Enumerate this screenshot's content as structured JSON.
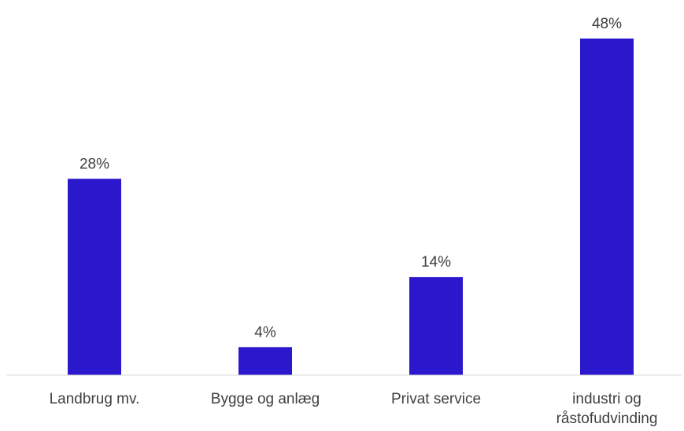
{
  "chart_data": {
    "type": "bar",
    "categories": [
      "Landbrug mv.",
      "Bygge og anlæg",
      "Privat service",
      "industri og råstofudvinding"
    ],
    "category_lines": [
      [
        "Landbrug mv."
      ],
      [
        "Bygge og anlæg"
      ],
      [
        "Privat service"
      ],
      [
        "industri og",
        "råstofudvinding"
      ]
    ],
    "values": [
      28,
      4,
      14,
      48
    ],
    "value_labels": [
      "28%",
      "4%",
      "14%",
      "48%"
    ],
    "unit": "%",
    "title": "",
    "xlabel": "",
    "ylabel": "",
    "ylim": [
      0,
      48
    ],
    "grid": false,
    "legend": "none",
    "colors": {
      "bar": "#2B18CC",
      "axis": "#D9D9D9",
      "text": "#404040"
    }
  }
}
